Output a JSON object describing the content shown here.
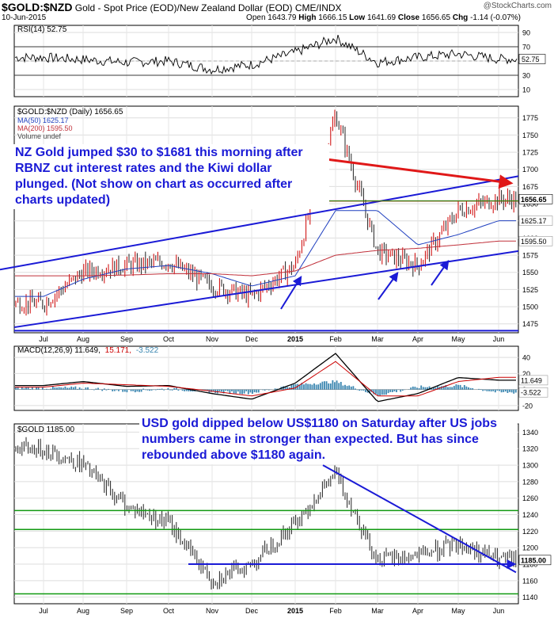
{
  "header": {
    "symbol": "$GOLD:$NZD",
    "description": "Gold - Spot Price (EOD)/New Zealand Dollar (EOD)",
    "exchange": "CME/INDX",
    "date": "10-Jun-2015",
    "open_label": "Open",
    "open": "1643.79",
    "high_label": "High",
    "high": "1666.15",
    "low_label": "Low",
    "low": "1641.69",
    "close_label": "Close",
    "close": "1656.65",
    "chg_label": "Chg",
    "chg": "-1.14 (-0.07%)",
    "logo": "@StockCharts.com"
  },
  "colors": {
    "price_bar": "#222222",
    "up_bar": "#cc0000",
    "ma50": "#1f3fbf",
    "ma200": "#c0303a",
    "trend_blue": "#1a1ad6",
    "trend_red": "#e01818",
    "support_green": "#119911",
    "annotation_text": "#1a1ad6",
    "macd_hist": "#3a86b0"
  },
  "chart_data": [
    {
      "type": "line",
      "panel": "rsi",
      "legend": "RSI(14) 52.75",
      "yticks": [
        10,
        30,
        50,
        70,
        90
      ],
      "ylim": [
        0,
        100
      ],
      "reference_lines": [
        30,
        70
      ],
      "last_value_label": "52.75",
      "x": [
        "Jul",
        "Aug",
        "Sep",
        "Oct",
        "Nov",
        "Dec",
        "2015",
        "Feb",
        "Mar",
        "Apr",
        "May",
        "Jun"
      ],
      "values": [
        55,
        52,
        48,
        50,
        38,
        45,
        62,
        82,
        48,
        55,
        60,
        52.75
      ]
    },
    {
      "type": "line",
      "panel": "price",
      "legend": [
        "$GOLD:$NZD (Daily) 1656.65",
        "MA(50) 1625.17",
        "MA(200) 1595.50",
        "Volume undef"
      ],
      "yticks": [
        1475,
        1500,
        1525,
        1550,
        1575,
        1600,
        1625,
        1650,
        1675,
        1700,
        1725,
        1750,
        1775
      ],
      "ylim": [
        1462,
        1792
      ],
      "price_labels": [
        "1656.65",
        "1625.17",
        "1595.50"
      ],
      "x": [
        "Jul",
        "Aug",
        "Sep",
        "Oct",
        "Nov",
        "Dec",
        "2015",
        "Feb",
        "Mar",
        "Apr",
        "May",
        "Jun"
      ],
      "series": [
        {
          "name": "$GOLD:$NZD (Daily)",
          "values": [
            1505,
            1550,
            1560,
            1565,
            1530,
            1515,
            1560,
            1780,
            1580,
            1560,
            1640,
            1656.65
          ]
        },
        {
          "name": "MA(50)",
          "values": [
            1515,
            1540,
            1555,
            1560,
            1548,
            1530,
            1545,
            1640,
            1640,
            1590,
            1605,
            1625.17
          ]
        },
        {
          "name": "MA(200)",
          "values": [
            1545,
            1545,
            1546,
            1548,
            1548,
            1545,
            1552,
            1575,
            1582,
            1585,
            1590,
            1595.5
          ]
        }
      ],
      "annotation": "NZ Gold jumped $30 to $1681 this morning after RBNZ cut interest rates and the Kiwi dollar plunged. (Not show on chart as occurred after charts updated)"
    },
    {
      "type": "line",
      "panel": "macd",
      "legend": [
        "MACD(12,26,9) 11.649,",
        "15.171,",
        "-3.522"
      ],
      "yticks": [
        -20,
        0,
        20,
        40
      ],
      "ylim": [
        -26,
        54
      ],
      "last_value_labels": [
        "11.649",
        "-3.522"
      ],
      "x": [
        "Jul",
        "Aug",
        "Sep",
        "Oct",
        "Nov",
        "Dec",
        "2015",
        "Feb",
        "Mar",
        "Apr",
        "May",
        "Jun"
      ],
      "series": [
        {
          "name": "MACD",
          "values": [
            5,
            10,
            4,
            5,
            -5,
            -12,
            8,
            45,
            -15,
            -5,
            15,
            11.649
          ]
        },
        {
          "name": "Signal",
          "values": [
            3,
            8,
            6,
            4,
            -2,
            -8,
            2,
            35,
            -8,
            -8,
            10,
            15.171
          ]
        }
      ]
    },
    {
      "type": "line",
      "panel": "usd_gold",
      "legend": "$GOLD 1185.00",
      "yticks": [
        1140,
        1160,
        1180,
        1200,
        1220,
        1240,
        1260,
        1280,
        1300,
        1320,
        1340
      ],
      "ylim": [
        1132,
        1350
      ],
      "last_value_label": "1185.00",
      "support_levels": [
        1144,
        1222,
        1245
      ],
      "x": [
        "Jul",
        "Aug",
        "Sep",
        "Oct",
        "Nov",
        "Dec",
        "2015",
        "Feb",
        "Mar",
        "Apr",
        "May",
        "Jun"
      ],
      "values": [
        1320,
        1300,
        1250,
        1230,
        1160,
        1180,
        1230,
        1290,
        1185,
        1190,
        1205,
        1185
      ],
      "annotation": "USD gold dipped below US$1180 on Saturday after US jobs numbers came in stronger than expected. But has since rebounded above $1180 again."
    }
  ],
  "x_axis_labels": [
    "Jul",
    "Aug",
    "Sep",
    "Oct",
    "Nov",
    "Dec",
    "2015",
    "Feb",
    "Mar",
    "Apr",
    "May",
    "Jun"
  ]
}
